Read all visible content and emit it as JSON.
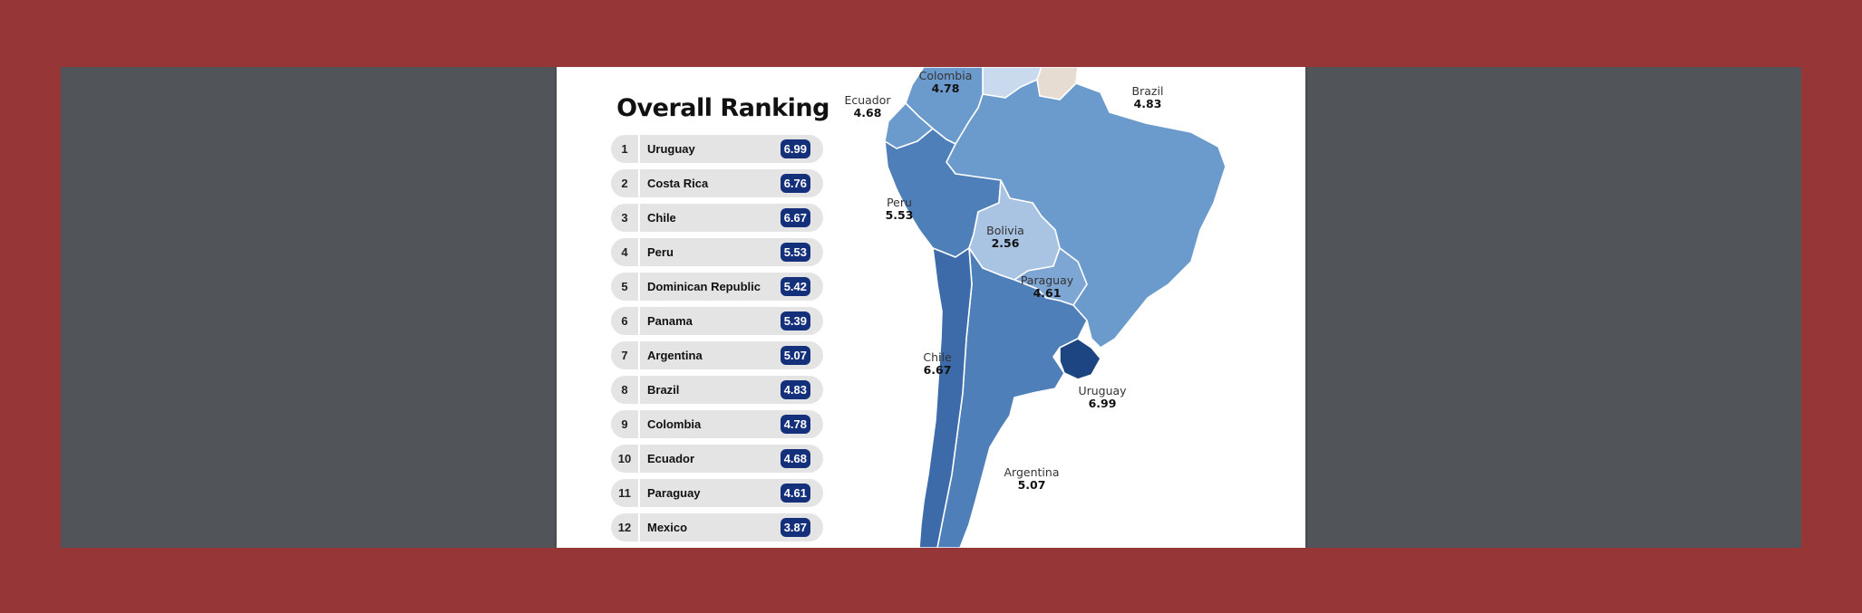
{
  "ranking": {
    "title": "Overall Ranking",
    "items": [
      {
        "rank": "1",
        "country": "Uruguay",
        "score": "6.99"
      },
      {
        "rank": "2",
        "country": "Costa Rica",
        "score": "6.76"
      },
      {
        "rank": "3",
        "country": "Chile",
        "score": "6.67"
      },
      {
        "rank": "4",
        "country": "Peru",
        "score": "5.53"
      },
      {
        "rank": "5",
        "country": "Dominican Republic",
        "score": "5.42"
      },
      {
        "rank": "6",
        "country": "Panama",
        "score": "5.39"
      },
      {
        "rank": "7",
        "country": "Argentina",
        "score": "5.07"
      },
      {
        "rank": "8",
        "country": "Brazil",
        "score": "4.83"
      },
      {
        "rank": "9",
        "country": "Colombia",
        "score": "4.78"
      },
      {
        "rank": "10",
        "country": "Ecuador",
        "score": "4.68"
      },
      {
        "rank": "11",
        "country": "Paraguay",
        "score": "4.61"
      },
      {
        "rank": "12",
        "country": "Mexico",
        "score": "3.87"
      }
    ]
  },
  "map": {
    "labels": {
      "colombia": {
        "name": "Colombia",
        "value": "4.78"
      },
      "brazil": {
        "name": "Brazil",
        "value": "4.83"
      },
      "ecuador": {
        "name": "Ecuador",
        "value": "4.68"
      },
      "peru": {
        "name": "Peru",
        "value": "5.53"
      },
      "bolivia": {
        "name": "Bolivia",
        "value": "2.56"
      },
      "paraguay": {
        "name": "Paraguay",
        "value": "4.61"
      },
      "chile": {
        "name": "Chile",
        "value": "6.67"
      },
      "uruguay": {
        "name": "Uruguay",
        "value": "6.99"
      },
      "argentina": {
        "name": "Argentina",
        "value": "5.07"
      }
    },
    "colors": {
      "brazil": "#6b9acd",
      "colombia": "#6b9acd",
      "ecuador": "#6b9acd",
      "peru": "#4f7fb8",
      "bolivia": "#a9c3e3",
      "paraguay": "#7ea6d4",
      "chile": "#3d6aa8",
      "argentina": "#4f7fb8",
      "uruguay": "#1d4582",
      "venezuela_lite": "#c9daee",
      "guiana_beige": "#e6dcd2",
      "rank_badge": "#14307a",
      "background_frame": "#963636",
      "viewer_gray": "#515458"
    }
  }
}
